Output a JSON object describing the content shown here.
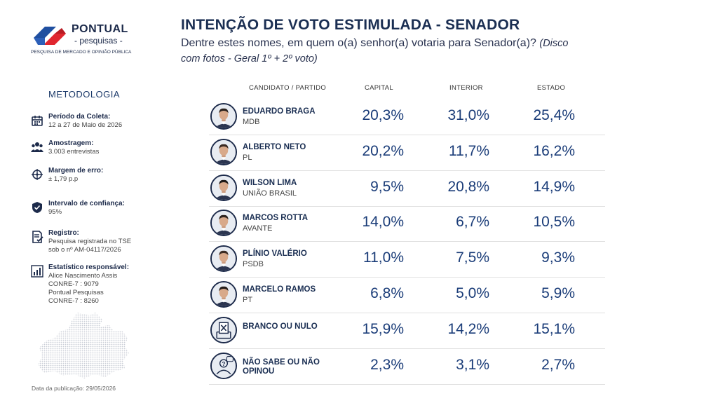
{
  "logo": {
    "name": "PONTUAL",
    "sub": "- pesquisas -",
    "tagline": "PESQUISA DE MERCADO E OPINIÃO PÚBLICA"
  },
  "header": {
    "title": "INTENÇÃO DE VOTO ESTIMULADA - SENADOR",
    "question": "Dentre estes nomes, em quem o(a) senhor(a) votaria para Senador(a)?",
    "note": "(Disco com fotos - Geral 1º + 2º voto)"
  },
  "methodology": {
    "title": "METODOLOGIA",
    "items": [
      {
        "label": "Período da Coleta:",
        "lines": [
          "12 a 27 de Maio de 2026"
        ],
        "icon": "calendar-icon"
      },
      {
        "label": "Amostragem:",
        "lines": [
          "3.003 entrevistas"
        ],
        "icon": "people-icon"
      },
      {
        "label": "Margem de erro:",
        "lines": [
          "± 1,79 p.p"
        ],
        "icon": "crosshair-icon"
      },
      {
        "label": "Intervalo de confiança:",
        "lines": [
          "95%"
        ],
        "icon": "shield-icon"
      },
      {
        "label": "Registro:",
        "lines": [
          "Pesquisa registrada no TSE",
          "sob o nº AM-04117/2026"
        ],
        "icon": "document-check-icon"
      },
      {
        "label": "Estatístico responsável:",
        "lines": [
          "Alice Nascimento Assis",
          "CONRE-7 : 9079",
          "Pontual Pesquisas",
          "CONRE-7 : 8260"
        ],
        "icon": "bar-chart-icon"
      }
    ],
    "pub_date": "Data da publicação: 29/05/2026"
  },
  "chart_data": {
    "type": "table",
    "title": "INTENÇÃO DE VOTO ESTIMULADA - SENADOR",
    "columns": [
      "CANDIDATO / PARTIDO",
      "CAPITAL",
      "INTERIOR",
      "ESTADO"
    ],
    "rows": [
      {
        "name": "EDUARDO BRAGA",
        "party": "MDB",
        "values": [
          "20,3%",
          "31,0%",
          "25,4%"
        ],
        "icon": "person-photo"
      },
      {
        "name": "ALBERTO NETO",
        "party": "PL",
        "values": [
          "20,2%",
          "11,7%",
          "16,2%"
        ],
        "icon": "person-photo"
      },
      {
        "name": "WILSON LIMA",
        "party": "UNIÃO BRASIL",
        "values": [
          "9,5%",
          "20,8%",
          "14,9%"
        ],
        "icon": "person-photo"
      },
      {
        "name": "MARCOS ROTTA",
        "party": "AVANTE",
        "values": [
          "14,0%",
          "6,7%",
          "10,5%"
        ],
        "icon": "person-photo"
      },
      {
        "name": "PLÍNIO VALÉRIO",
        "party": "PSDB",
        "values": [
          "11,0%",
          "7,5%",
          "9,3%"
        ],
        "icon": "person-photo"
      },
      {
        "name": "MARCELO RAMOS",
        "party": "PT",
        "values": [
          "6,8%",
          "5,0%",
          "5,9%"
        ],
        "icon": "person-photo"
      },
      {
        "name": "BRANCO OU NULO",
        "party": "",
        "values": [
          "15,9%",
          "14,2%",
          "15,1%"
        ],
        "icon": "ballot-x-icon"
      },
      {
        "name": "NÃO SABE OU NÃO OPINOU",
        "party": "",
        "values": [
          "2,3%",
          "3,1%",
          "2,7%"
        ],
        "icon": "question-person-icon"
      }
    ]
  },
  "colors": {
    "navy": "#1a2e52",
    "value_blue": "#1a3c78",
    "logo_red": "#e0262f",
    "logo_blue": "#1f4fa0"
  }
}
